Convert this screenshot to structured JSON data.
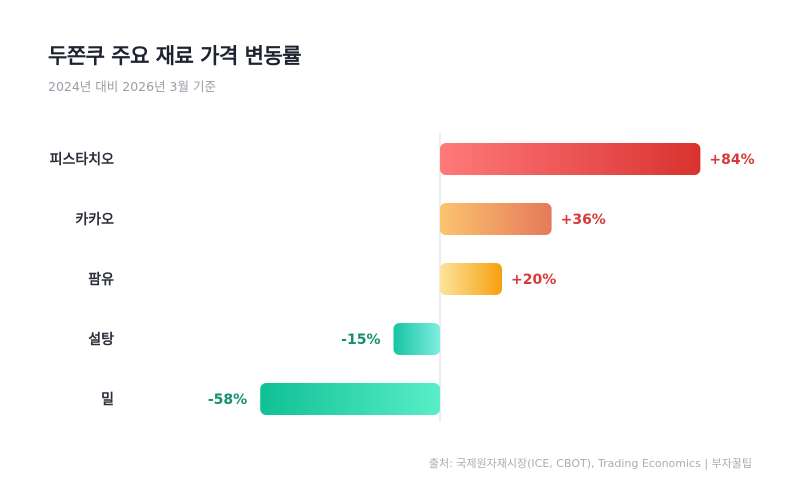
{
  "title": "두쫀쿠 주요 재료 가격 변동률",
  "subtitle": "2024년 대비 2026년 3월 기준",
  "source": "출처: 국제원자재시장(ICE, CBOT), Trading Economics | 부자꿀팁",
  "chart_data": {
    "type": "bar",
    "orientation": "horizontal",
    "unit": "%",
    "categories": [
      "피스타치오",
      "카카오",
      "팜유",
      "설탕",
      "밀"
    ],
    "values": [
      84,
      36,
      20,
      -15,
      -58
    ],
    "value_labels": [
      "+84%",
      "+36%",
      "+20%",
      "-15%",
      "-58%"
    ],
    "xlim": [
      -58,
      84
    ],
    "grid": false,
    "legend": "none",
    "colors": {
      "positive_label": "#d63a3a",
      "negative_label": "#139070",
      "category_label": "#2b2f38",
      "zero_line": "#d9dbe0",
      "bars": [
        [
          "#ff7a7a",
          "#d8322f"
        ],
        [
          "#fbc46e",
          "#e57a5a"
        ],
        [
          "#fde49a",
          "#f5a00f"
        ],
        [
          "#15c4a3",
          "#7eeee0"
        ],
        [
          "#10c095",
          "#58eec8"
        ]
      ]
    }
  }
}
